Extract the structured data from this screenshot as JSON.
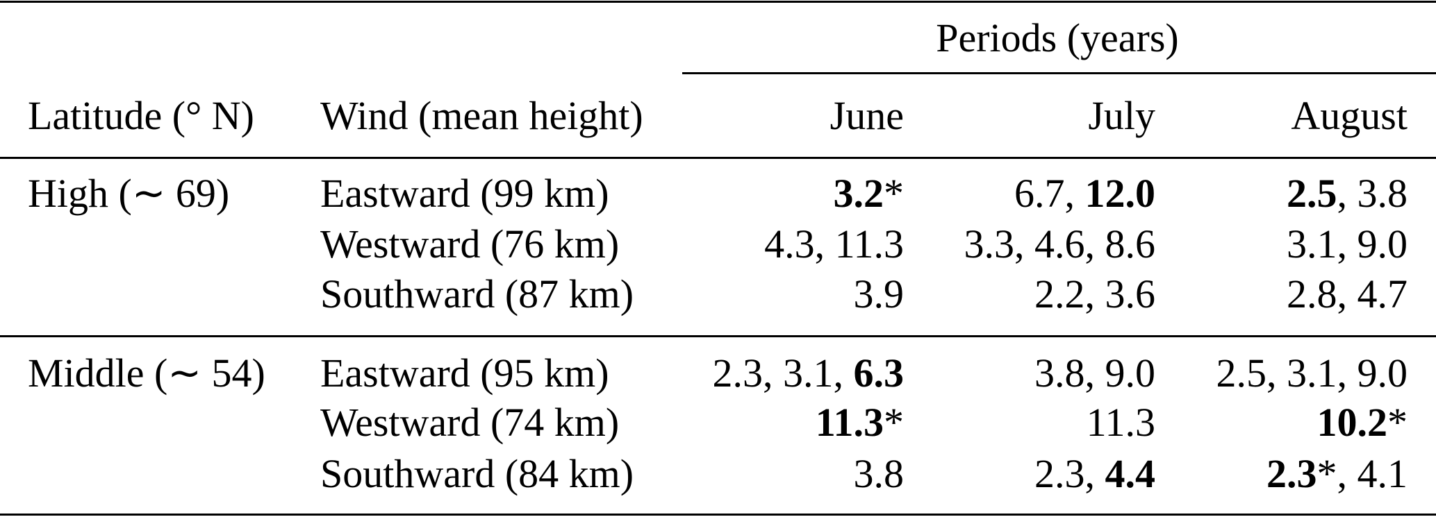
{
  "header": {
    "group_label": "Periods (years)",
    "columns": [
      "Latitude (° N)",
      "Wind (mean height)",
      "June",
      "July",
      "August"
    ]
  },
  "table": {
    "groups": [
      {
        "latitude": "High (∼ 69)",
        "rows": [
          {
            "wind": "Eastward (99 km)",
            "periods": [
              [
                {
                  "text": "3.2",
                  "bold": true
                },
                {
                  "text": "*"
                }
              ],
              [
                {
                  "text": "6.7, "
                },
                {
                  "text": "12.0",
                  "bold": true
                }
              ],
              [
                {
                  "text": "2.5",
                  "bold": true
                },
                {
                  "text": ", 3.8"
                }
              ]
            ]
          },
          {
            "wind": "Westward (76 km)",
            "periods": [
              [
                {
                  "text": "4.3, 11.3"
                }
              ],
              [
                {
                  "text": "3.3, 4.6, 8.6"
                }
              ],
              [
                {
                  "text": "3.1, 9.0"
                }
              ]
            ]
          },
          {
            "wind": "Southward (87 km)",
            "periods": [
              [
                {
                  "text": "3.9"
                }
              ],
              [
                {
                  "text": "2.2, 3.6"
                }
              ],
              [
                {
                  "text": "2.8, 4.7"
                }
              ]
            ]
          }
        ]
      },
      {
        "latitude": "Middle (∼ 54)",
        "rows": [
          {
            "wind": "Eastward (95 km)",
            "periods": [
              [
                {
                  "text": "2.3, 3.1, "
                },
                {
                  "text": "6.3",
                  "bold": true
                }
              ],
              [
                {
                  "text": "3.8, 9.0"
                }
              ],
              [
                {
                  "text": "2.5, 3.1, 9.0"
                }
              ]
            ]
          },
          {
            "wind": "Westward (74 km)",
            "periods": [
              [
                {
                  "text": "11.3",
                  "bold": true
                },
                {
                  "text": "*"
                }
              ],
              [
                {
                  "text": "11.3"
                }
              ],
              [
                {
                  "text": "10.2",
                  "bold": true
                },
                {
                  "text": "*"
                }
              ]
            ]
          },
          {
            "wind": "Southward (84 km)",
            "periods": [
              [
                {
                  "text": "3.8"
                }
              ],
              [
                {
                  "text": "2.3, "
                },
                {
                  "text": "4.4",
                  "bold": true
                }
              ],
              [
                {
                  "text": "2.3",
                  "bold": true
                },
                {
                  "text": "*"
                },
                {
                  "text": ", 4.1"
                }
              ]
            ]
          }
        ]
      }
    ]
  }
}
